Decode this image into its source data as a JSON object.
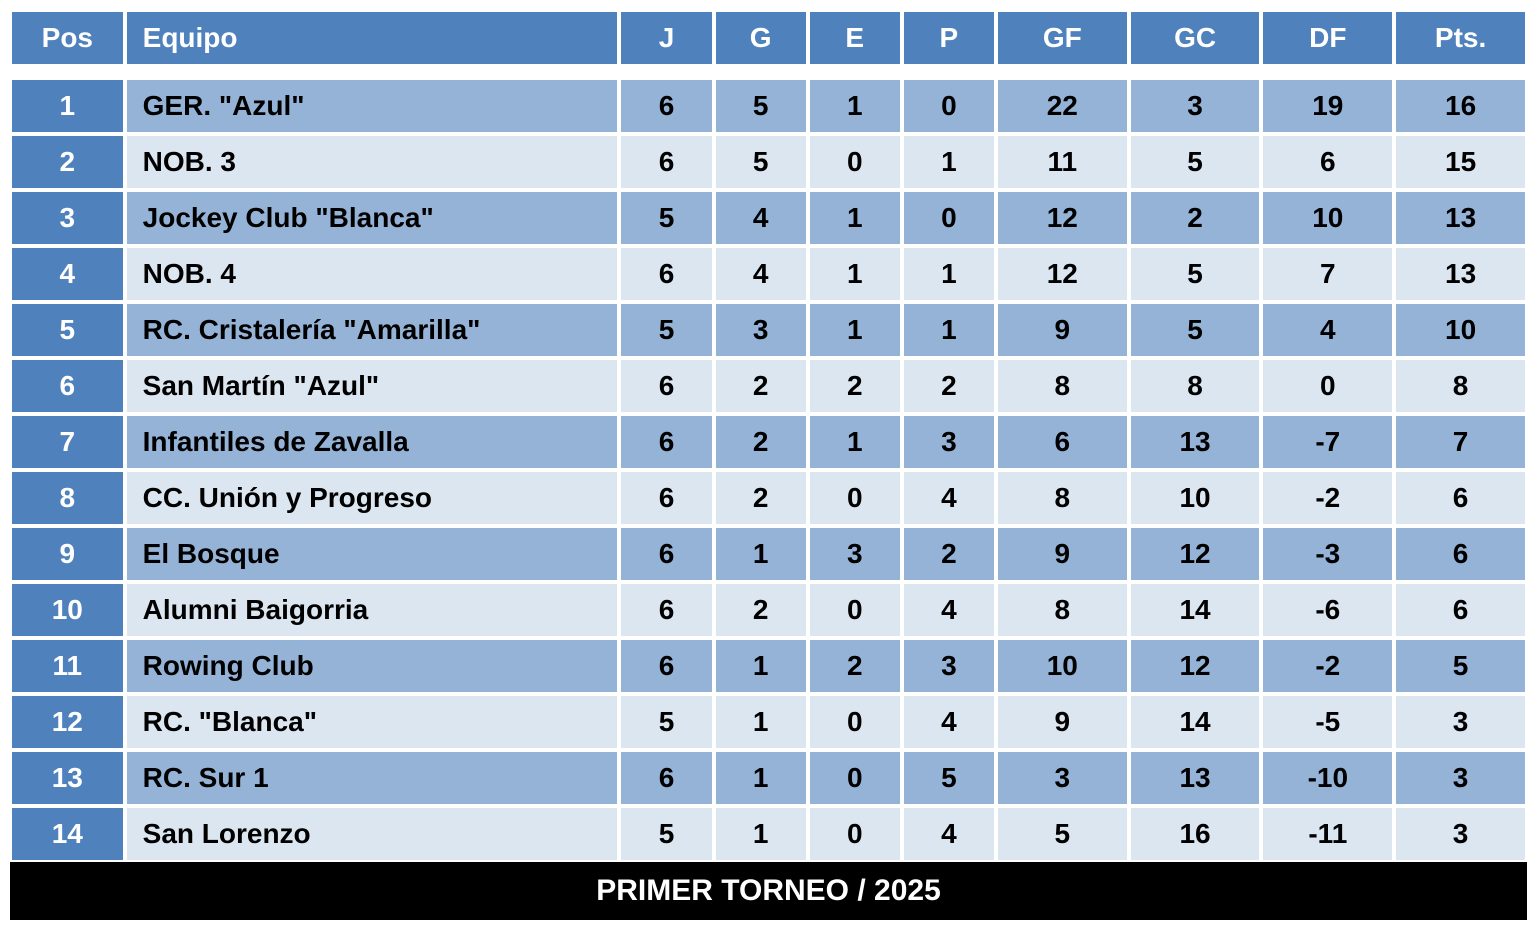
{
  "table": {
    "type": "table",
    "background_color": "#ffffff",
    "header_bg": "#4f81bd",
    "header_fg": "#ffffff",
    "pos_bg": "#4f81bd",
    "pos_fg": "#ffffff",
    "row_odd_bg": "#95b3d7",
    "row_even_bg": "#dce6f1",
    "cell_fg": "#000000",
    "border_color": "#ffffff",
    "font_family": "Arial",
    "header_fontsize": 28,
    "cell_fontsize": 28,
    "footer_bg": "#000000",
    "footer_fg": "#ffffff",
    "footer_fontsize": 30,
    "columns": {
      "pos": "Pos",
      "equipo": "Equipo",
      "j": "J",
      "g": "G",
      "e": "E",
      "p": "P",
      "gf": "GF",
      "gc": "GC",
      "df": "DF",
      "pts": "Pts."
    },
    "rows": [
      {
        "pos": "1",
        "equipo": "GER. \"Azul\"",
        "j": "6",
        "g": "5",
        "e": "1",
        "p": "0",
        "gf": "22",
        "gc": "3",
        "df": "19",
        "pts": "16"
      },
      {
        "pos": "2",
        "equipo": "NOB. 3",
        "j": "6",
        "g": "5",
        "e": "0",
        "p": "1",
        "gf": "11",
        "gc": "5",
        "df": "6",
        "pts": "15"
      },
      {
        "pos": "3",
        "equipo": "Jockey Club \"Blanca\"",
        "j": "5",
        "g": "4",
        "e": "1",
        "p": "0",
        "gf": "12",
        "gc": "2",
        "df": "10",
        "pts": "13"
      },
      {
        "pos": "4",
        "equipo": "NOB. 4",
        "j": "6",
        "g": "4",
        "e": "1",
        "p": "1",
        "gf": "12",
        "gc": "5",
        "df": "7",
        "pts": "13"
      },
      {
        "pos": "5",
        "equipo": "RC. Cristalería \"Amarilla\"",
        "j": "5",
        "g": "3",
        "e": "1",
        "p": "1",
        "gf": "9",
        "gc": "5",
        "df": "4",
        "pts": "10"
      },
      {
        "pos": "6",
        "equipo": "San Martín \"Azul\"",
        "j": "6",
        "g": "2",
        "e": "2",
        "p": "2",
        "gf": "8",
        "gc": "8",
        "df": "0",
        "pts": "8"
      },
      {
        "pos": "7",
        "equipo": "Infantiles de Zavalla",
        "j": "6",
        "g": "2",
        "e": "1",
        "p": "3",
        "gf": "6",
        "gc": "13",
        "df": "-7",
        "pts": "7"
      },
      {
        "pos": "8",
        "equipo": "CC. Unión y Progreso",
        "j": "6",
        "g": "2",
        "e": "0",
        "p": "4",
        "gf": "8",
        "gc": "10",
        "df": "-2",
        "pts": "6"
      },
      {
        "pos": "9",
        "equipo": "El Bosque",
        "j": "6",
        "g": "1",
        "e": "3",
        "p": "2",
        "gf": "9",
        "gc": "12",
        "df": "-3",
        "pts": "6"
      },
      {
        "pos": "10",
        "equipo": "Alumni Baigorria",
        "j": "6",
        "g": "2",
        "e": "0",
        "p": "4",
        "gf": "8",
        "gc": "14",
        "df": "-6",
        "pts": "6"
      },
      {
        "pos": "11",
        "equipo": "Rowing Club",
        "j": "6",
        "g": "1",
        "e": "2",
        "p": "3",
        "gf": "10",
        "gc": "12",
        "df": "-2",
        "pts": "5"
      },
      {
        "pos": "12",
        "equipo": "RC. \"Blanca\"",
        "j": "5",
        "g": "1",
        "e": "0",
        "p": "4",
        "gf": "9",
        "gc": "14",
        "df": "-5",
        "pts": "3"
      },
      {
        "pos": "13",
        "equipo": "RC. Sur 1",
        "j": "6",
        "g": "1",
        "e": "0",
        "p": "5",
        "gf": "3",
        "gc": "13",
        "df": "-10",
        "pts": "3"
      },
      {
        "pos": "14",
        "equipo": "San Lorenzo",
        "j": "5",
        "g": "1",
        "e": "0",
        "p": "4",
        "gf": "5",
        "gc": "16",
        "df": "-11",
        "pts": "3"
      }
    ],
    "footer": "PRIMER TORNEO / 2025"
  }
}
